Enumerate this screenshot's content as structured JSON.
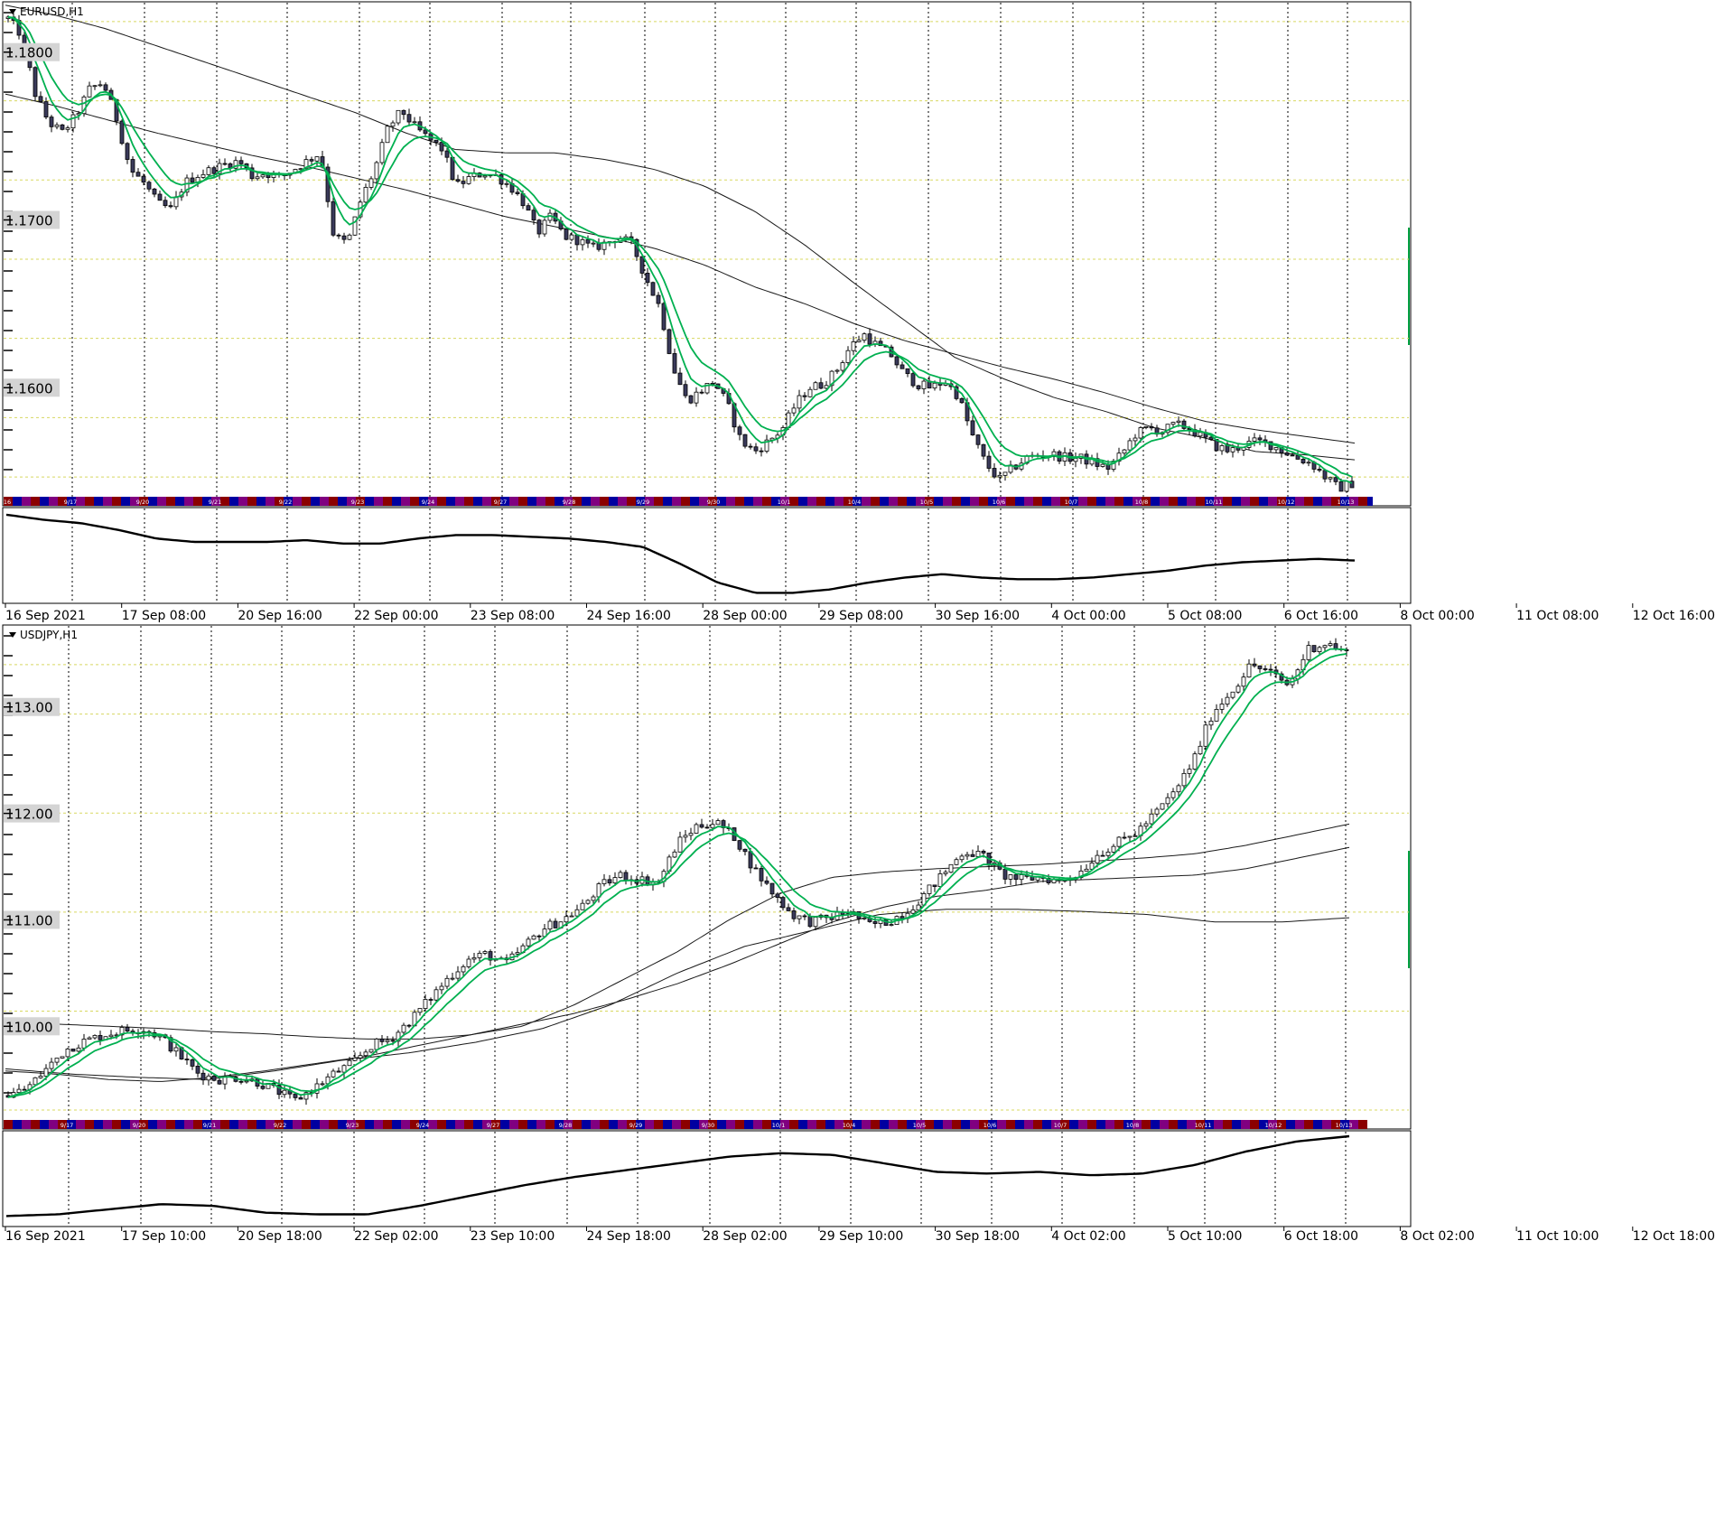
{
  "chart_data": [
    {
      "type": "candlestick",
      "symbol_label": "EURUSD,H1",
      "y_ticks": [
        "1.1800",
        "1.1700",
        "1.1600"
      ],
      "y_tick_values": [
        1.18,
        1.17,
        1.16
      ],
      "ylim": [
        1.1535,
        1.183
      ],
      "x_tick_labels": [
        "16 Sep 2021",
        "17 Sep 08:00",
        "20 Sep 16:00",
        "22 Sep 00:00",
        "23 Sep 08:00",
        "24 Sep 16:00",
        "28 Sep 00:00",
        "29 Sep 08:00",
        "30 Sep 16:00",
        "4 Oct 00:00",
        "5 Oct 08:00",
        "6 Oct 16:00",
        "8 Oct 00:00",
        "11 Oct 08:00",
        "12 Oct 16:00"
      ],
      "date_strip_labels": [
        "16",
        "9/17",
        "9/20",
        "9/21",
        "9/22",
        "9/23",
        "9/24",
        "9/27",
        "9/28",
        "9/29",
        "9/30",
        "10/1",
        "10/4",
        "10/5",
        "10/6",
        "10/7",
        "10/8",
        "10/11",
        "10/12",
        "10/13"
      ],
      "price_path": [
        1.182,
        1.181,
        1.1775,
        1.1758,
        1.1752,
        1.1762,
        1.1778,
        1.1782,
        1.176,
        1.173,
        1.1722,
        1.171,
        1.1706,
        1.1722,
        1.1727,
        1.173,
        1.1733,
        1.1735,
        1.1726,
        1.1728,
        1.1725,
        1.173,
        1.1735,
        1.174,
        1.169,
        1.1686,
        1.1712,
        1.173,
        1.1755,
        1.1765,
        1.1755,
        1.1748,
        1.1742,
        1.172,
        1.1725,
        1.1728,
        1.1726,
        1.172,
        1.171,
        1.1692,
        1.1702,
        1.169,
        1.1688,
        1.1683,
        1.1686,
        1.169,
        1.1685,
        1.1665,
        1.1648,
        1.1612,
        1.1592,
        1.1598,
        1.1604,
        1.159,
        1.1568,
        1.1562,
        1.1568,
        1.1575,
        1.159,
        1.16,
        1.1602,
        1.161,
        1.1624,
        1.1632,
        1.1625,
        1.162,
        1.1608,
        1.1602,
        1.16,
        1.1604,
        1.1595,
        1.1572,
        1.1555,
        1.1545,
        1.1552,
        1.1558,
        1.156,
        1.156,
        1.1558,
        1.1558,
        1.1555,
        1.1552,
        1.156,
        1.1572,
        1.1576,
        1.1574,
        1.1578,
        1.1576,
        1.157,
        1.1565,
        1.1562,
        1.1566,
        1.1568,
        1.1566,
        1.1562,
        1.1558,
        1.1555,
        1.1547,
        1.154,
        1.1543
      ],
      "ma_slow": [
        1.1828,
        1.1822,
        1.1814,
        1.1804,
        1.1794,
        1.1784,
        1.1774,
        1.1764,
        1.1752,
        1.1742,
        1.174,
        1.174,
        1.1736,
        1.173,
        1.172,
        1.1705,
        1.1685,
        1.1662,
        1.164,
        1.1618,
        1.1605,
        1.1594,
        1.1586,
        1.1576,
        1.157,
        1.1562,
        1.156,
        1.1557
      ],
      "ma_mid": [
        1.1775,
        1.1768,
        1.176,
        1.1752,
        1.1745,
        1.1738,
        1.1732,
        1.1725,
        1.1718,
        1.171,
        1.1702,
        1.1696,
        1.169,
        1.1683,
        1.1673,
        1.166,
        1.165,
        1.1638,
        1.1628,
        1.162,
        1.1612,
        1.1605,
        1.1597,
        1.1588,
        1.158,
        1.1575,
        1.1571,
        1.1567
      ],
      "indicator_path": [
        0.98,
        0.92,
        0.88,
        0.8,
        0.7,
        0.66,
        0.66,
        0.66,
        0.68,
        0.64,
        0.64,
        0.7,
        0.74,
        0.74,
        0.72,
        0.7,
        0.66,
        0.6,
        0.4,
        0.18,
        0.06,
        0.06,
        0.1,
        0.18,
        0.24,
        0.28,
        0.24,
        0.22,
        0.22,
        0.24,
        0.28,
        0.32,
        0.38,
        0.42,
        0.44,
        0.46,
        0.44
      ]
    },
    {
      "type": "candlestick",
      "symbol_label": "USDJPY,H1",
      "y_ticks": [
        "113.00",
        "112.00",
        "111.00",
        "110.00"
      ],
      "y_tick_values": [
        113.0,
        112.0,
        111.0,
        110.0
      ],
      "ylim": [
        109.12,
        113.77
      ],
      "x_tick_labels": [
        "16 Sep 2021",
        "17 Sep 10:00",
        "20 Sep 18:00",
        "22 Sep 02:00",
        "23 Sep 10:00",
        "24 Sep 18:00",
        "28 Sep 02:00",
        "29 Sep 10:00",
        "30 Sep 18:00",
        "4 Oct 02:00",
        "5 Oct 10:00",
        "6 Oct 18:00",
        "8 Oct 02:00",
        "11 Oct 10:00",
        "12 Oct 18:00"
      ],
      "date_strip_labels": [
        "9/17",
        "9/20",
        "9/21",
        "9/22",
        "9/23",
        "9/24",
        "9/27",
        "9/28",
        "9/29",
        "9/30",
        "10/1",
        "10/4",
        "10/5",
        "10/6",
        "10/7",
        "10/8",
        "10/11",
        "10/12",
        "10/13"
      ],
      "price_path": [
        109.35,
        109.42,
        109.6,
        109.78,
        109.86,
        109.92,
        109.96,
        109.98,
        109.9,
        109.72,
        109.55,
        109.5,
        109.52,
        109.48,
        109.4,
        109.3,
        109.42,
        109.55,
        109.65,
        109.82,
        109.88,
        110.05,
        110.25,
        110.45,
        110.62,
        110.68,
        110.58,
        110.75,
        110.92,
        111.0,
        111.12,
        111.32,
        111.42,
        111.38,
        111.35,
        111.72,
        111.88,
        111.92,
        111.78,
        111.48,
        111.25,
        111.05,
        110.98,
        111.02,
        111.08,
        110.95,
        110.98,
        111.08,
        111.25,
        111.45,
        111.65,
        111.6,
        111.42,
        111.38,
        111.4,
        111.36,
        111.44,
        111.62,
        111.72,
        111.82,
        112.0,
        112.2,
        112.5,
        112.95,
        113.15,
        113.4,
        113.32,
        113.2,
        113.55,
        113.6,
        113.5
      ],
      "ma_slow": [
        110.05,
        110.02,
        110.0,
        109.98,
        109.95,
        109.93,
        109.9,
        109.88,
        109.88,
        109.92,
        110.0,
        110.2,
        110.45,
        110.7,
        111.0,
        111.25,
        111.4,
        111.45,
        111.48,
        111.5,
        111.52,
        111.55,
        111.58,
        111.62,
        111.7,
        111.8,
        111.9
      ],
      "ma_mid": [
        109.58,
        109.55,
        109.5,
        109.48,
        109.52,
        109.58,
        109.65,
        109.72,
        109.82,
        109.92,
        110.02,
        110.12,
        110.25,
        110.4,
        110.58,
        110.78,
        110.98,
        111.12,
        111.22,
        111.28,
        111.36,
        111.38,
        111.4,
        111.42,
        111.48,
        111.58,
        111.68
      ],
      "ma_long": [
        109.6,
        109.55,
        109.52,
        109.5,
        109.58,
        109.68,
        109.75,
        109.85,
        109.98,
        110.2,
        110.5,
        110.75,
        110.9,
        111.05,
        111.1,
        111.1,
        111.08,
        111.05,
        110.98,
        110.98,
        111.02
      ],
      "indicator_path": [
        0.06,
        0.08,
        0.14,
        0.2,
        0.18,
        0.1,
        0.08,
        0.08,
        0.18,
        0.3,
        0.42,
        0.52,
        0.6,
        0.68,
        0.76,
        0.8,
        0.78,
        0.68,
        0.58,
        0.56,
        0.58,
        0.54,
        0.56,
        0.66,
        0.82,
        0.94,
        1.0
      ]
    }
  ],
  "colors": {
    "candle_body": "#3a3a5a",
    "ma_fast": "#00b050",
    "ma_slow_line": "#1a1a1a",
    "grid_h": "#d8d860",
    "grid_v": "#000000",
    "strip_red": "#8b0000",
    "strip_blue": "#0000a0",
    "strip_purple": "#800080"
  }
}
